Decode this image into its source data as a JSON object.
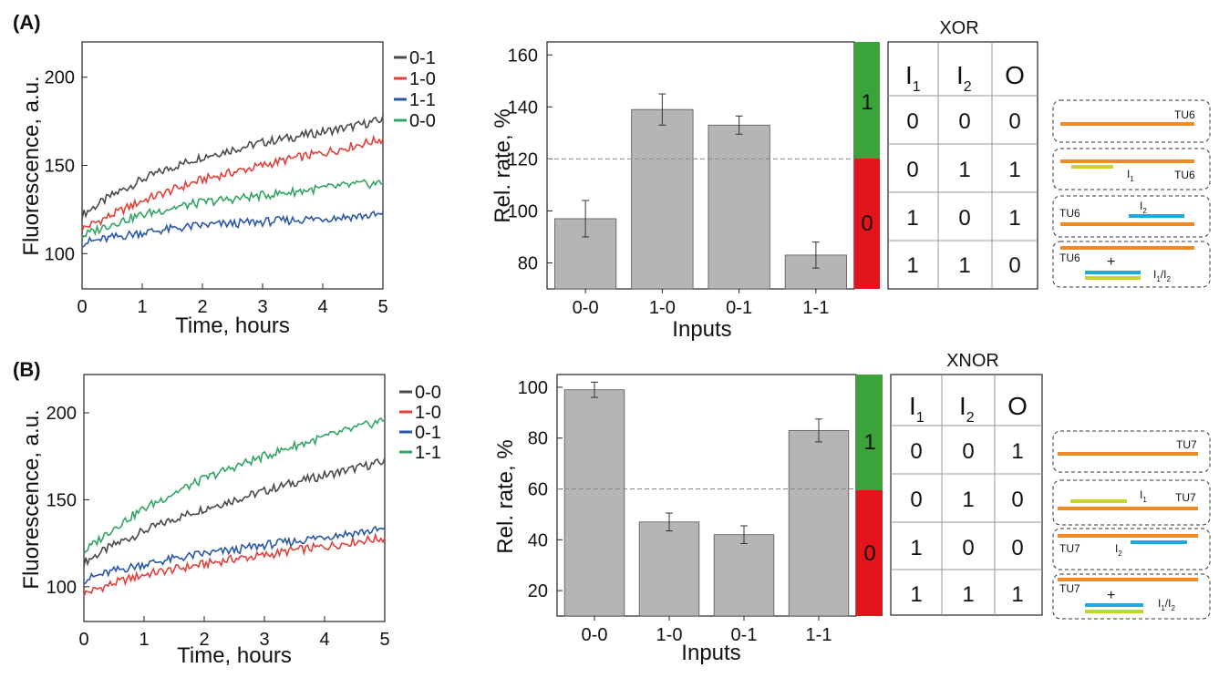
{
  "colors": {
    "dark": "#4a4a4a",
    "red": "#e2403a",
    "blue": "#2b57a7",
    "green": "#32a463",
    "bar": "#b5b5b5",
    "state_on": "#3aa33a",
    "state_off": "#e3141c",
    "strand_orange": "#f08a24",
    "strand_yellow": "#c9d42a",
    "strand_cyan": "#1fa9e1"
  },
  "chart_data": [
    {
      "panel": "(A)",
      "type": "line",
      "xlabel": "Time, hours",
      "ylabel": "Fluorescence, a.u.",
      "xlim": [
        0,
        5
      ],
      "ylim": [
        80,
        220
      ],
      "xticks": [
        0,
        1,
        2,
        3,
        4,
        5
      ],
      "yticks": [
        100,
        150,
        200
      ],
      "legend_position": "top-right",
      "series": [
        {
          "name": "0-1",
          "color": "#4a4a4a",
          "x": [
            0,
            0.5,
            1,
            1.5,
            2,
            2.5,
            3,
            3.5,
            4,
            4.5,
            5
          ],
          "values": [
            122,
            133,
            142,
            149,
            155,
            159,
            163,
            166,
            169,
            172,
            176
          ]
        },
        {
          "name": "1-0",
          "color": "#e2403a",
          "x": [
            0,
            0.5,
            1,
            1.5,
            2,
            2.5,
            3,
            3.5,
            4,
            4.5,
            5
          ],
          "values": [
            114,
            122,
            130,
            136,
            142,
            146,
            150,
            154,
            157,
            161,
            165
          ]
        },
        {
          "name": "1-1",
          "color": "#2b57a7",
          "x": [
            0,
            0.5,
            1,
            1.5,
            2,
            2.5,
            3,
            3.5,
            4,
            4.5,
            5
          ],
          "values": [
            106,
            109,
            112,
            114,
            116,
            117,
            118,
            119,
            120,
            121,
            122
          ]
        },
        {
          "name": "0-0",
          "color": "#32a463",
          "x": [
            0,
            0.5,
            1,
            1.5,
            2,
            2.5,
            3,
            3.5,
            4,
            4.5,
            5
          ],
          "values": [
            110,
            117,
            122,
            126,
            129,
            131,
            133,
            135,
            137,
            139,
            140
          ]
        }
      ]
    },
    {
      "panel": "(A)",
      "type": "bar",
      "xlabel": "Inputs",
      "ylabel": "Rel. rate, %",
      "ylim": [
        70,
        165
      ],
      "yticks": [
        80,
        100,
        120,
        140,
        160
      ],
      "categories": [
        "0-0",
        "1-0",
        "0-1",
        "1-1"
      ],
      "values": [
        97,
        139,
        133,
        83
      ],
      "errors": [
        7,
        6,
        3.5,
        5
      ],
      "threshold": 120,
      "state_labels": [
        "1",
        "0"
      ]
    },
    {
      "panel": "(B)",
      "type": "line",
      "xlabel": "Time, hours",
      "ylabel": "Fluorescence, a.u.",
      "xlim": [
        0,
        5
      ],
      "ylim": [
        80,
        222
      ],
      "xticks": [
        0,
        1,
        2,
        3,
        4,
        5
      ],
      "yticks": [
        100,
        150,
        200
      ],
      "legend_position": "top-right",
      "series": [
        {
          "name": "0-0",
          "color": "#4a4a4a",
          "x": [
            0,
            0.5,
            1,
            1.5,
            2,
            2.5,
            3,
            3.5,
            4,
            4.5,
            5
          ],
          "values": [
            114,
            124,
            132,
            139,
            145,
            150,
            155,
            160,
            164,
            168,
            172
          ]
        },
        {
          "name": "1-0",
          "color": "#e2403a",
          "x": [
            0,
            0.5,
            1,
            1.5,
            2,
            2.5,
            3,
            3.5,
            4,
            4.5,
            5
          ],
          "values": [
            96,
            102,
            107,
            110,
            113,
            116,
            118,
            121,
            123,
            126,
            128
          ]
        },
        {
          "name": "0-1",
          "color": "#2b57a7",
          "x": [
            0,
            0.5,
            1,
            1.5,
            2,
            2.5,
            3,
            3.5,
            4,
            4.5,
            5
          ],
          "values": [
            104,
            109,
            113,
            116,
            119,
            121,
            124,
            126,
            129,
            131,
            133
          ]
        },
        {
          "name": "1-1",
          "color": "#32a463",
          "x": [
            0,
            0.5,
            1,
            1.5,
            2,
            2.5,
            3,
            3.5,
            4,
            4.5,
            5
          ],
          "values": [
            120,
            134,
            145,
            154,
            162,
            169,
            175,
            181,
            186,
            191,
            196
          ]
        }
      ]
    },
    {
      "panel": "(B)",
      "type": "bar",
      "xlabel": "Inputs",
      "ylabel": "Rel. rate, %",
      "ylim": [
        10,
        105
      ],
      "yticks": [
        20,
        40,
        60,
        80,
        100
      ],
      "categories": [
        "0-0",
        "1-0",
        "0-1",
        "1-1"
      ],
      "values": [
        99,
        47,
        42,
        83
      ],
      "errors": [
        3,
        3.5,
        3.5,
        4.5
      ],
      "threshold": 60,
      "state_labels": [
        "1",
        "0"
      ]
    }
  ],
  "panels": {
    "a": {
      "label": "(A)",
      "truth_table": {
        "title": "XOR",
        "header": [
          "I",
          "1",
          "I",
          "2",
          "O"
        ],
        "rows": [
          [
            "0",
            "0",
            "0"
          ],
          [
            "0",
            "1",
            "1"
          ],
          [
            "1",
            "0",
            "1"
          ],
          [
            "1",
            "1",
            "0"
          ]
        ]
      },
      "schemes": [
        {
          "tu": "TU6"
        },
        {
          "tu": "TU6",
          "i": "I",
          "isub": "1"
        },
        {
          "tu": "TU6",
          "i": "I",
          "isub": "2"
        },
        {
          "tu": "TU6",
          "plus": "+",
          "pair": "I",
          "pairsub1": "1",
          "slash": "/",
          "pairsub2": "2"
        }
      ]
    },
    "b": {
      "label": "(B)",
      "truth_table": {
        "title": "XNOR",
        "header": [
          "I",
          "1",
          "I",
          "2",
          "O"
        ],
        "rows": [
          [
            "0",
            "0",
            "1"
          ],
          [
            "0",
            "1",
            "0"
          ],
          [
            "1",
            "0",
            "0"
          ],
          [
            "1",
            "1",
            "1"
          ]
        ]
      },
      "schemes": [
        {
          "tu": "TU7"
        },
        {
          "tu": "TU7",
          "i": "I",
          "isub": "1"
        },
        {
          "tu": "TU7",
          "i": "I",
          "isub": "2"
        },
        {
          "tu": "TU7",
          "plus": "+",
          "pair": "I",
          "pairsub1": "1",
          "slash": "/",
          "pairsub2": "2"
        }
      ]
    }
  }
}
